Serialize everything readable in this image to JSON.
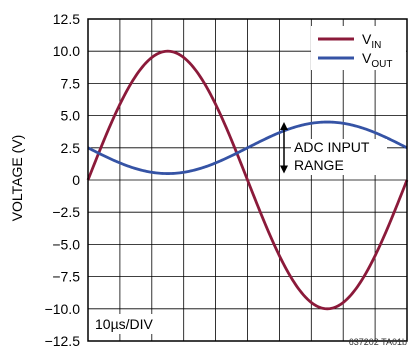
{
  "chart_data": {
    "type": "line",
    "title": "",
    "xlabel": "10µs/DIV",
    "ylabel": "VOLTAGE (V)",
    "ylim": [
      -12.5,
      12.5
    ],
    "yticks": [
      "12.5",
      "10.0",
      "7.5",
      "5.0",
      "2.5",
      "0",
      "−2.5",
      "−5.0",
      "−7.5",
      "−10.0",
      "−12.5"
    ],
    "ytick_values": [
      12.5,
      10.0,
      7.5,
      5.0,
      2.5,
      0,
      -2.5,
      -5.0,
      -7.5,
      -10.0,
      -12.5
    ],
    "x_divisions": 10,
    "grid": true,
    "legend_position": "top-right",
    "series": [
      {
        "name": "V_IN",
        "label_main": "V",
        "label_sub": "IN",
        "color": "#8b1a3a",
        "amplitude": 10,
        "offset": 0,
        "period_div": 10,
        "phase_div": 0,
        "sign": 1
      },
      {
        "name": "V_OUT",
        "label_main": "V",
        "label_sub": "OUT",
        "color": "#3553a5",
        "amplitude": 2,
        "offset": 2.5,
        "period_div": 10,
        "phase_div": 0,
        "sign": -1
      }
    ],
    "annotation": {
      "line1": "ADC INPUT",
      "line2": "RANGE",
      "range": [
        0.5,
        4.5
      ]
    },
    "figure_id": "637202 TA01b"
  }
}
